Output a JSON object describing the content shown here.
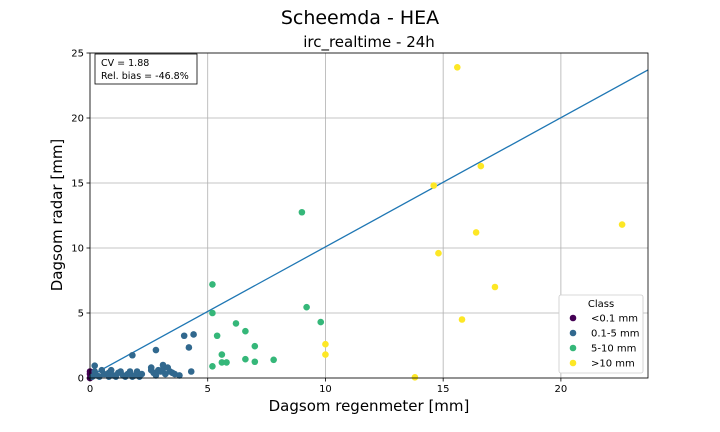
{
  "chart_data": {
    "type": "scatter",
    "suptitle": "Scheemda - HEA",
    "title": "irc_realtime - 24h",
    "xlabel": "Dagsom regenmeter [mm]",
    "ylabel": "Dagsom radar [mm]",
    "xlim": [
      0,
      23.7
    ],
    "ylim": [
      0,
      25
    ],
    "xticks": [
      "0",
      "5",
      "10",
      "15",
      "20"
    ],
    "xtick_values": [
      0,
      5,
      10,
      15,
      20
    ],
    "yticks": [
      "0",
      "5",
      "10",
      "15",
      "20",
      "25"
    ],
    "ytick_values": [
      0,
      5,
      10,
      15,
      20,
      25
    ],
    "grid": true,
    "stats": {
      "cv": "CV = 1.88",
      "bias": "Rel. bias = -46.8%"
    },
    "fit_line": {
      "x": [
        0,
        23.7
      ],
      "y": [
        0.15,
        23.7
      ],
      "color": "#1f77b4"
    },
    "legend": {
      "title": "Class",
      "position": "lower-right"
    },
    "series": [
      {
        "name": "<0.1 mm",
        "color": "#440154",
        "points": [
          [
            0.0,
            0.0
          ],
          [
            0.0,
            0.3
          ],
          [
            0.0,
            0.5
          ]
        ]
      },
      {
        "name": "0.1-5 mm",
        "color": "#31688e",
        "points": [
          [
            0.1,
            0.1
          ],
          [
            0.2,
            0.95
          ],
          [
            0.2,
            0.5
          ],
          [
            0.3,
            0.2
          ],
          [
            0.4,
            0.1
          ],
          [
            0.5,
            0.6
          ],
          [
            0.6,
            0.3
          ],
          [
            0.8,
            0.1
          ],
          [
            0.8,
            0.4
          ],
          [
            0.9,
            0.6
          ],
          [
            1.0,
            0.2
          ],
          [
            1.1,
            0.1
          ],
          [
            1.2,
            0.4
          ],
          [
            1.3,
            0.5
          ],
          [
            1.4,
            0.2
          ],
          [
            1.5,
            0.1
          ],
          [
            1.6,
            0.3
          ],
          [
            1.7,
            0.5
          ],
          [
            1.8,
            0.1
          ],
          [
            1.8,
            1.75
          ],
          [
            1.9,
            0.2
          ],
          [
            2.0,
            0.5
          ],
          [
            2.1,
            0.1
          ],
          [
            2.2,
            0.3
          ],
          [
            2.6,
            0.8
          ],
          [
            2.6,
            0.6
          ],
          [
            2.7,
            0.4
          ],
          [
            2.8,
            2.15
          ],
          [
            2.8,
            0.2
          ],
          [
            2.9,
            0.6
          ],
          [
            3.0,
            0.5
          ],
          [
            3.1,
            0.7
          ],
          [
            3.1,
            1.0
          ],
          [
            3.2,
            0.3
          ],
          [
            3.3,
            0.8
          ],
          [
            3.4,
            0.5
          ],
          [
            3.5,
            0.4
          ],
          [
            3.6,
            0.3
          ],
          [
            3.8,
            0.2
          ],
          [
            4.0,
            3.25
          ],
          [
            4.2,
            2.35
          ],
          [
            4.3,
            0.5
          ],
          [
            4.4,
            3.35
          ]
        ]
      },
      {
        "name": "5-10 mm",
        "color": "#35b779",
        "points": [
          [
            5.2,
            7.2
          ],
          [
            5.2,
            5.0
          ],
          [
            5.2,
            0.9
          ],
          [
            5.4,
            3.25
          ],
          [
            5.6,
            1.8
          ],
          [
            5.6,
            1.2
          ],
          [
            5.8,
            1.2
          ],
          [
            6.2,
            4.2
          ],
          [
            6.6,
            3.6
          ],
          [
            6.6,
            1.45
          ],
          [
            7.0,
            2.45
          ],
          [
            7.0,
            1.25
          ],
          [
            7.8,
            1.4
          ],
          [
            9.0,
            12.75
          ],
          [
            9.2,
            5.45
          ],
          [
            9.8,
            4.3
          ]
        ]
      },
      {
        "name": ">10 mm",
        "color": "#fde725",
        "points": [
          [
            10.0,
            2.6
          ],
          [
            10.0,
            1.8
          ],
          [
            13.8,
            0.05
          ],
          [
            14.6,
            14.8
          ],
          [
            14.8,
            9.6
          ],
          [
            15.6,
            23.9
          ],
          [
            15.8,
            4.5
          ],
          [
            16.4,
            11.2
          ],
          [
            16.6,
            16.3
          ],
          [
            17.2,
            7.0
          ],
          [
            22.6,
            11.8
          ]
        ]
      }
    ]
  }
}
